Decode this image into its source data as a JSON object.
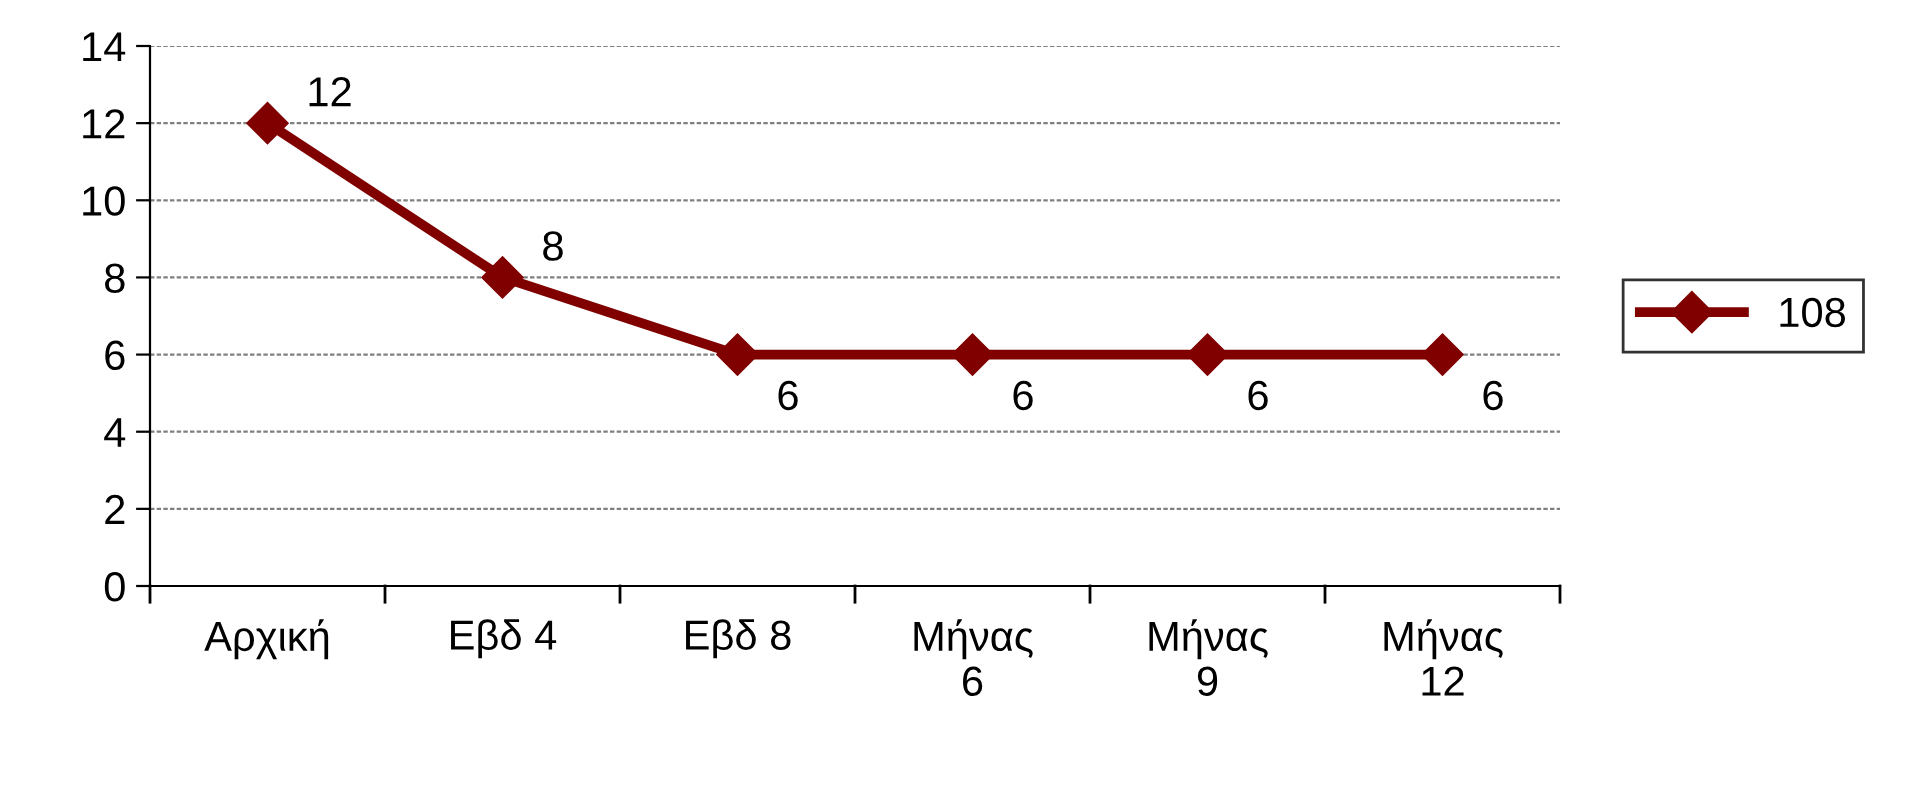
{
  "chart_data": {
    "type": "line",
    "categories": [
      "Αρχική",
      "Εβδ 4",
      "Εβδ 8",
      "Μήνας 6",
      "Μήνας 9",
      "Μήνας 12"
    ],
    "series": [
      {
        "name": "108",
        "color": "#800000",
        "values": [
          12,
          8,
          6,
          6,
          6,
          6
        ]
      }
    ],
    "ylim": [
      0,
      14
    ],
    "yticks": [
      0,
      2,
      4,
      6,
      8,
      10,
      12,
      14
    ],
    "grid": "y",
    "legend": "right",
    "marker": "diamond",
    "line_style": "solid",
    "data_labels": true
  }
}
